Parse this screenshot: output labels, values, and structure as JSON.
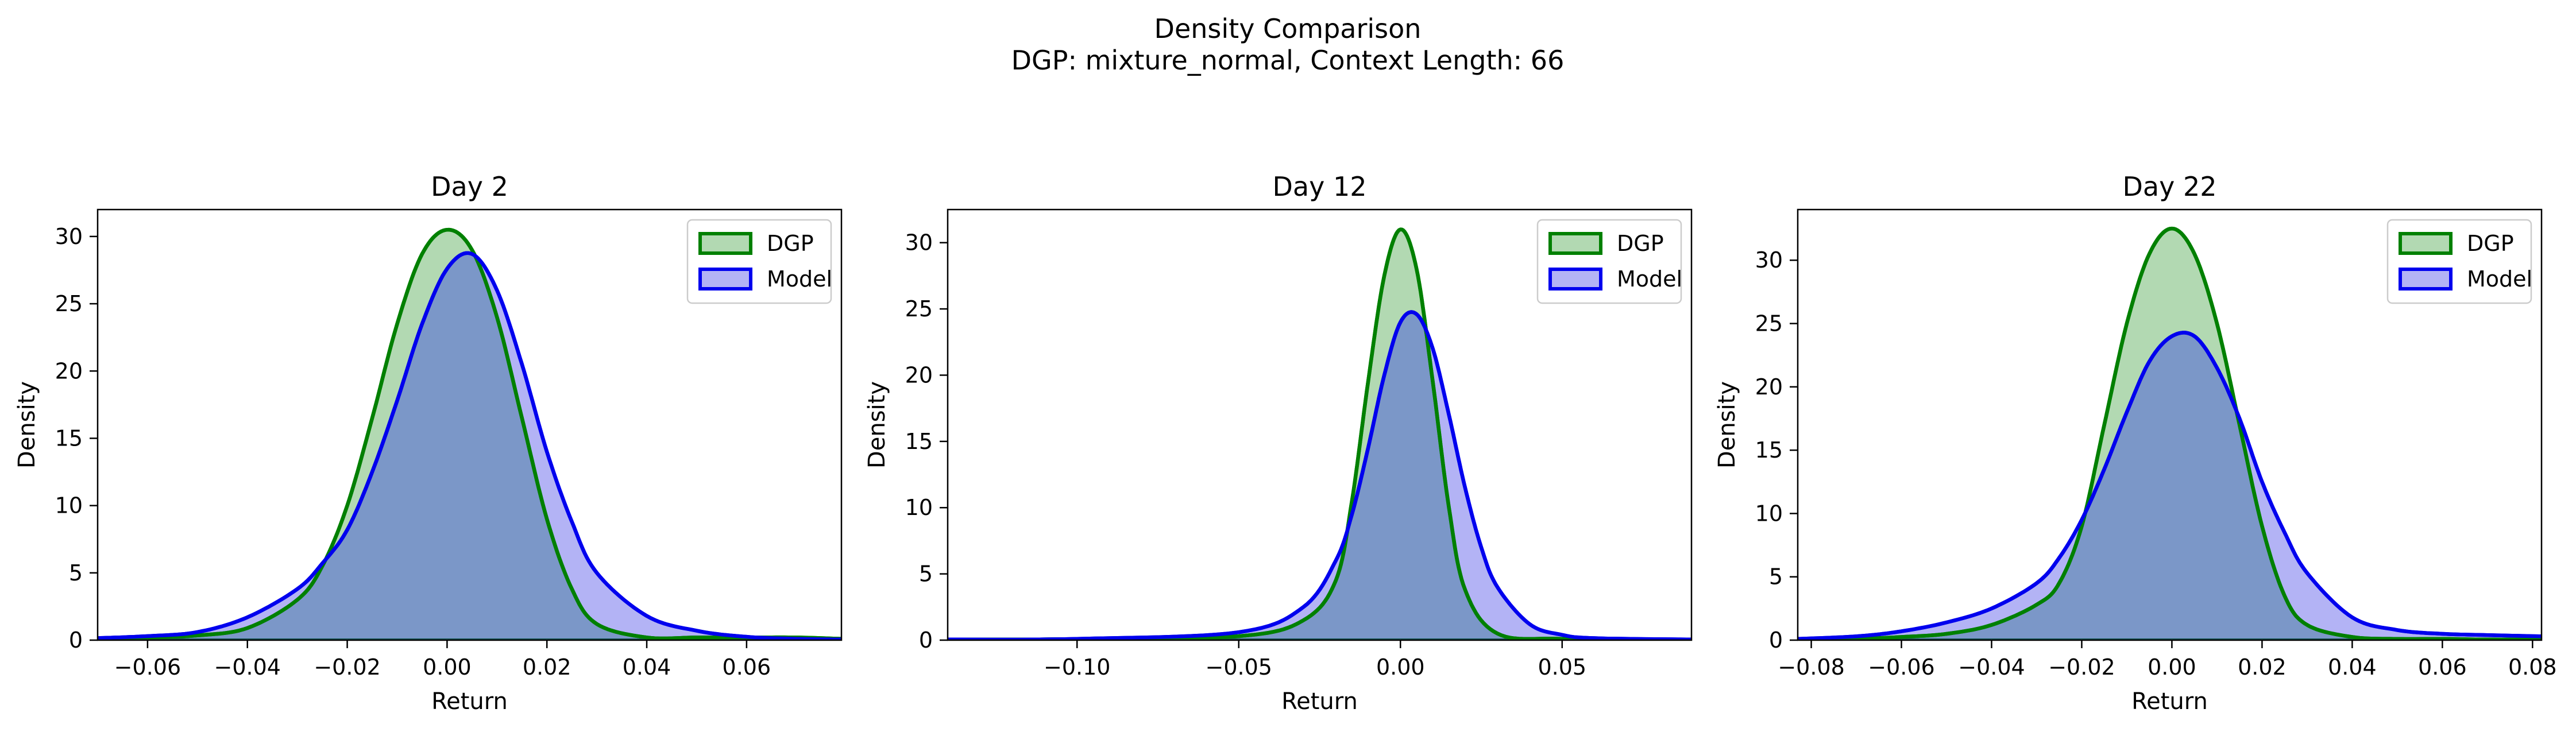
{
  "figure": {
    "title_line1": "Density Comparison",
    "title_line2": "DGP: mixture_normal, Context Length: 66"
  },
  "colors": {
    "dgp_line": "#008000",
    "dgp_fill": "#b2d9b2",
    "model_line": "#0000ee",
    "model_fill": "#b3b3f5",
    "overlap_fill": "#7b97c8",
    "overlap_edge": "#1f5a5a"
  },
  "chart_data": [
    {
      "type": "area",
      "title": "Day 2",
      "xlabel": "Return",
      "ylabel": "Density",
      "xlim": [
        -0.07,
        0.079
      ],
      "ylim": [
        0,
        32
      ],
      "xticks": [
        -0.06,
        -0.04,
        -0.02,
        0.0,
        0.02,
        0.04,
        0.06
      ],
      "xtick_labels": [
        "−0.06",
        "−0.04",
        "−0.02",
        "0.00",
        "0.02",
        "0.04",
        "0.06"
      ],
      "yticks": [
        0,
        5,
        10,
        15,
        20,
        25,
        30
      ],
      "ytick_labels": [
        "0",
        "5",
        "10",
        "15",
        "20",
        "25",
        "30"
      ],
      "legend_position": "upper-right",
      "series": [
        {
          "name": "DGP",
          "x": [
            -0.07,
            -0.06,
            -0.05,
            -0.04,
            -0.03,
            -0.025,
            -0.02,
            -0.015,
            -0.01,
            -0.005,
            0.0,
            0.005,
            0.01,
            0.015,
            0.02,
            0.025,
            0.03,
            0.04,
            0.05,
            0.06,
            0.07,
            0.079
          ],
          "y": [
            0.1,
            0.2,
            0.35,
            0.9,
            3.0,
            5.5,
            10.0,
            16.5,
            23.5,
            28.7,
            30.5,
            29.0,
            24.0,
            16.5,
            9.0,
            3.8,
            1.2,
            0.2,
            0.2,
            0.2,
            0.2,
            0.1
          ]
        },
        {
          "name": "Model",
          "x": [
            -0.07,
            -0.06,
            -0.05,
            -0.04,
            -0.03,
            -0.025,
            -0.02,
            -0.015,
            -0.01,
            -0.005,
            0.0,
            0.005,
            0.01,
            0.015,
            0.02,
            0.025,
            0.03,
            0.04,
            0.05,
            0.06,
            0.07,
            0.079
          ],
          "y": [
            0.15,
            0.3,
            0.6,
            1.7,
            3.8,
            5.7,
            8.2,
            12.5,
            17.8,
            23.5,
            27.6,
            28.7,
            26.0,
            20.5,
            14.0,
            8.8,
            5.0,
            1.8,
            0.7,
            0.25,
            0.1,
            0.05
          ]
        }
      ]
    },
    {
      "type": "area",
      "title": "Day 12",
      "xlabel": "Return",
      "ylabel": "Density",
      "xlim": [
        -0.14,
        0.09
      ],
      "ylim": [
        0,
        32.5
      ],
      "xticks": [
        -0.1,
        -0.05,
        0.0,
        0.05
      ],
      "xtick_labels": [
        "−0.10",
        "−0.05",
        "0.00",
        "0.05"
      ],
      "yticks": [
        0,
        5,
        10,
        15,
        20,
        25,
        30
      ],
      "ytick_labels": [
        "0",
        "5",
        "10",
        "15",
        "20",
        "25",
        "30"
      ],
      "legend_position": "upper-right",
      "series": [
        {
          "name": "DGP",
          "x": [
            -0.14,
            -0.1,
            -0.05,
            -0.03,
            -0.02,
            -0.015,
            -0.01,
            -0.005,
            0.0,
            0.005,
            0.01,
            0.015,
            0.02,
            0.03,
            0.05,
            0.09
          ],
          "y": [
            0.05,
            0.08,
            0.3,
            1.5,
            4.5,
            10.5,
            19.5,
            27.5,
            31.0,
            28.0,
            19.5,
            10.0,
            3.8,
            0.5,
            0.1,
            0.05
          ]
        },
        {
          "name": "Model",
          "x": [
            -0.14,
            -0.1,
            -0.05,
            -0.03,
            -0.02,
            -0.015,
            -0.01,
            -0.005,
            0.0,
            0.005,
            0.01,
            0.015,
            0.02,
            0.025,
            0.03,
            0.04,
            0.05,
            0.06,
            0.09
          ],
          "y": [
            0.05,
            0.1,
            0.6,
            2.5,
            6.0,
            9.5,
            14.5,
            20.0,
            24.0,
            24.6,
            22.0,
            17.0,
            11.5,
            7.0,
            4.0,
            1.2,
            0.4,
            0.15,
            0.05
          ]
        }
      ]
    },
    {
      "type": "area",
      "title": "Day 22",
      "xlabel": "Return",
      "ylabel": "Density",
      "xlim": [
        -0.083,
        0.082
      ],
      "ylim": [
        0,
        34
      ],
      "xticks": [
        -0.08,
        -0.06,
        -0.04,
        -0.02,
        0.0,
        0.02,
        0.04,
        0.06,
        0.08
      ],
      "xtick_labels": [
        "−0.08",
        "−0.06",
        "−0.04",
        "−0.02",
        "0.00",
        "0.02",
        "0.04",
        "0.06",
        "0.08"
      ],
      "yticks": [
        0,
        5,
        10,
        15,
        20,
        25,
        30
      ],
      "ytick_labels": [
        "0",
        "5",
        "10",
        "15",
        "20",
        "25",
        "30"
      ],
      "legend_position": "upper-right",
      "series": [
        {
          "name": "DGP",
          "x": [
            -0.083,
            -0.07,
            -0.06,
            -0.05,
            -0.04,
            -0.03,
            -0.025,
            -0.02,
            -0.015,
            -0.01,
            -0.005,
            0.0,
            0.005,
            0.01,
            0.015,
            0.02,
            0.025,
            0.03,
            0.04,
            0.05,
            0.06,
            0.07,
            0.082
          ],
          "y": [
            0.05,
            0.1,
            0.25,
            0.5,
            1.2,
            2.8,
            4.5,
            9.0,
            17.0,
            25.0,
            30.5,
            32.5,
            30.5,
            25.0,
            17.0,
            9.0,
            3.5,
            1.2,
            0.25,
            0.1,
            0.1,
            0.05,
            0.05
          ]
        },
        {
          "name": "Model",
          "x": [
            -0.083,
            -0.07,
            -0.06,
            -0.05,
            -0.04,
            -0.03,
            -0.025,
            -0.02,
            -0.015,
            -0.01,
            -0.005,
            0.0,
            0.005,
            0.01,
            0.015,
            0.02,
            0.025,
            0.03,
            0.04,
            0.05,
            0.06,
            0.07,
            0.082
          ],
          "y": [
            0.1,
            0.3,
            0.7,
            1.4,
            2.5,
            4.5,
            6.5,
            9.5,
            13.5,
            18.0,
            22.0,
            24.0,
            24.0,
            21.5,
            17.5,
            12.5,
            8.5,
            5.3,
            1.8,
            0.8,
            0.5,
            0.4,
            0.3
          ]
        }
      ]
    }
  ]
}
